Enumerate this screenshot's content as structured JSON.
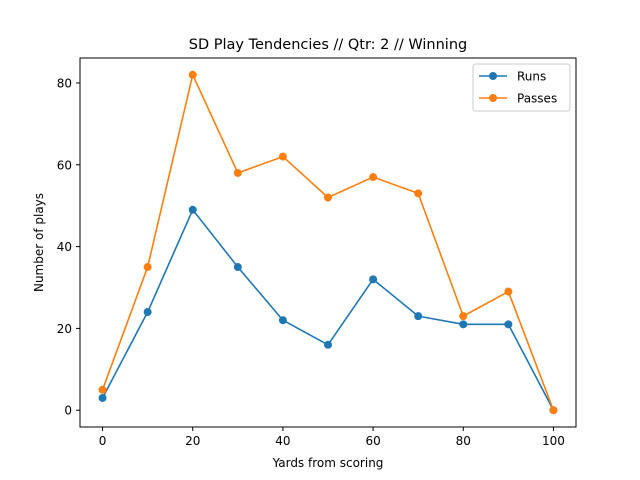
{
  "chart_data": {
    "type": "line",
    "title": "SD Play Tendencies // Qtr: 2 // Winning",
    "xlabel": "Yards from scoring",
    "ylabel": "Number of plays",
    "x": [
      0,
      10,
      20,
      30,
      40,
      50,
      60,
      70,
      80,
      90,
      100
    ],
    "xlim": [
      -5,
      105
    ],
    "ylim": [
      -4.1,
      86.1
    ],
    "xticks": [
      0,
      20,
      40,
      60,
      80,
      100
    ],
    "yticks": [
      0,
      20,
      40,
      60,
      80
    ],
    "grid": false,
    "legend_position": "top-right",
    "series": [
      {
        "name": "Runs",
        "color": "#1f77b4",
        "marker": "circle",
        "values": [
          3,
          24,
          49,
          35,
          22,
          16,
          32,
          23,
          21,
          21,
          0
        ]
      },
      {
        "name": "Passes",
        "color": "#ff7f0e",
        "marker": "circle",
        "values": [
          5,
          35,
          82,
          58,
          62,
          52,
          57,
          53,
          23,
          29,
          0
        ]
      }
    ]
  }
}
